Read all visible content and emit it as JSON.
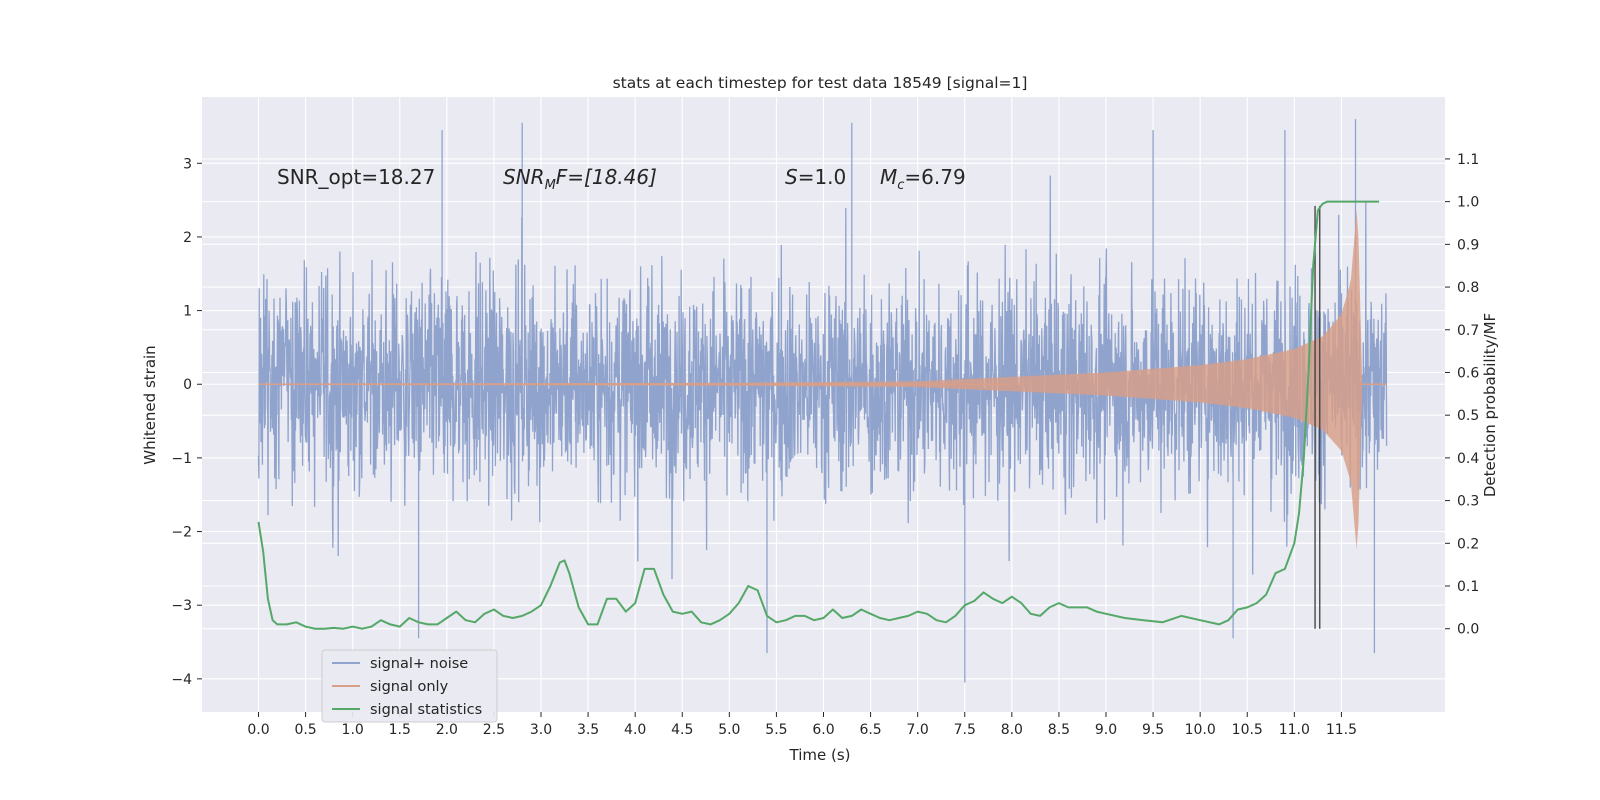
{
  "chart_data": {
    "type": "line",
    "title": "stats at each timestep for test data 18549 [signal=1]",
    "xlabel": "Time (s)",
    "ylabel": "Whitened strain",
    "ylabel_right": "Detection probability/MF",
    "xlim": [
      -0.6,
      12.6
    ],
    "ylim": [
      -4.45,
      3.9
    ],
    "ylim_right": [
      -0.195,
      1.245
    ],
    "x_ticks": [
      0.0,
      0.5,
      1.0,
      1.5,
      2.0,
      2.5,
      3.0,
      3.5,
      4.0,
      4.5,
      5.0,
      5.5,
      6.0,
      6.5,
      7.0,
      7.5,
      8.0,
      8.5,
      9.0,
      9.5,
      10.0,
      10.5,
      11.0,
      11.5
    ],
    "x_tick_labels": [
      "0.0",
      "0.5",
      "1.0",
      "1.5",
      "2.0",
      "2.5",
      "3.0",
      "3.5",
      "4.0",
      "4.5",
      "5.0",
      "5.5",
      "6.0",
      "6.5",
      "7.0",
      "7.5",
      "8.0",
      "8.5",
      "9.0",
      "9.5",
      "10.0",
      "10.5",
      "11.0",
      "11.5"
    ],
    "y_ticks": [
      -4,
      -3,
      -2,
      -1,
      0,
      1,
      2,
      3
    ],
    "y_tick_labels": [
      "−4",
      "−3",
      "−2",
      "−1",
      "0",
      "1",
      "2",
      "3"
    ],
    "y_right_ticks": [
      0.0,
      0.1,
      0.2,
      0.3,
      0.4,
      0.5,
      0.6,
      0.7,
      0.8,
      0.9,
      1.0,
      1.1
    ],
    "y_right_tick_labels": [
      "0.0",
      "0.1",
      "0.2",
      "0.3",
      "0.4",
      "0.5",
      "0.6",
      "0.7",
      "0.8",
      "0.9",
      "1.0",
      "1.1"
    ],
    "grid": true,
    "legend_position": "lower-left",
    "annotations": {
      "snr_opt": "SNR_opt=18.27",
      "snr_mf_base": "SNR",
      "snr_mf_sub": "M",
      "snr_mf_rest": "F=[18.46]",
      "s_var": "S",
      "s_rest": "=1.0",
      "mc_var": "M",
      "mc_sub": "c",
      "mc_rest": "=6.79"
    },
    "colors": {
      "background": "#eaeaf2",
      "grid": "#ffffff",
      "noise": "#8fa3cc",
      "signal": "#d99f88",
      "stats": "#55a868",
      "vline": "#3d3d3d"
    },
    "series": [
      {
        "name": "signal+ noise",
        "axis": "left",
        "x_range": [
          0.0,
          11.98
        ],
        "envelope_typical": [
          -1.5,
          1.55
        ],
        "peaks": [
          {
            "x": 1.95,
            "y": 3.45
          },
          {
            "x": 2.8,
            "y": 3.55
          },
          {
            "x": 6.3,
            "y": 3.55
          },
          {
            "x": 9.5,
            "y": 3.45
          },
          {
            "x": 10.9,
            "y": 3.45
          },
          {
            "x": 11.65,
            "y": 3.6
          },
          {
            "x": 7.5,
            "y": -4.05
          },
          {
            "x": 5.4,
            "y": -3.65
          },
          {
            "x": 11.85,
            "y": -3.65
          },
          {
            "x": 1.7,
            "y": -3.45
          },
          {
            "x": 10.35,
            "y": -3.45
          }
        ]
      },
      {
        "name": "signal only",
        "axis": "left",
        "chirp_end": 11.72,
        "envelope": [
          [
            0.0,
            0.01
          ],
          [
            5.0,
            0.02
          ],
          [
            7.0,
            0.04
          ],
          [
            8.0,
            0.1
          ],
          [
            9.0,
            0.16
          ],
          [
            10.0,
            0.26
          ],
          [
            10.5,
            0.34
          ],
          [
            11.0,
            0.48
          ],
          [
            11.3,
            0.65
          ],
          [
            11.5,
            0.95
          ],
          [
            11.6,
            1.4
          ],
          [
            11.67,
            2.5
          ],
          [
            11.72,
            0.1
          ]
        ]
      },
      {
        "name": "signal statistics",
        "axis": "right",
        "x": [
          0.0,
          0.05,
          0.1,
          0.15,
          0.2,
          0.3,
          0.4,
          0.5,
          0.6,
          0.7,
          0.8,
          0.9,
          1.0,
          1.1,
          1.2,
          1.3,
          1.4,
          1.5,
          1.6,
          1.7,
          1.8,
          1.9,
          2.0,
          2.1,
          2.2,
          2.3,
          2.4,
          2.5,
          2.6,
          2.7,
          2.8,
          2.9,
          3.0,
          3.1,
          3.2,
          3.25,
          3.3,
          3.4,
          3.5,
          3.6,
          3.7,
          3.8,
          3.9,
          4.0,
          4.1,
          4.2,
          4.3,
          4.4,
          4.5,
          4.6,
          4.7,
          4.8,
          4.9,
          5.0,
          5.1,
          5.2,
          5.3,
          5.4,
          5.5,
          5.6,
          5.7,
          5.8,
          5.9,
          6.0,
          6.1,
          6.2,
          6.3,
          6.4,
          6.5,
          6.6,
          6.7,
          6.8,
          6.9,
          7.0,
          7.1,
          7.2,
          7.3,
          7.4,
          7.5,
          7.6,
          7.7,
          7.8,
          7.9,
          8.0,
          8.1,
          8.2,
          8.3,
          8.4,
          8.5,
          8.6,
          8.7,
          8.8,
          8.9,
          9.0,
          9.2,
          9.4,
          9.6,
          9.8,
          10.0,
          10.2,
          10.3,
          10.4,
          10.5,
          10.6,
          10.7,
          10.8,
          10.9,
          11.0,
          11.05,
          11.1,
          11.15,
          11.2,
          11.25,
          11.3,
          11.35,
          11.4,
          11.5,
          11.7,
          11.9
        ],
        "values": [
          0.25,
          0.18,
          0.07,
          0.02,
          0.01,
          0.01,
          0.015,
          0.005,
          0.0,
          0.0,
          0.002,
          0.0,
          0.005,
          0.0,
          0.005,
          0.02,
          0.01,
          0.005,
          0.025,
          0.015,
          0.01,
          0.01,
          0.025,
          0.04,
          0.02,
          0.015,
          0.035,
          0.045,
          0.03,
          0.025,
          0.03,
          0.04,
          0.055,
          0.1,
          0.155,
          0.16,
          0.13,
          0.05,
          0.01,
          0.01,
          0.07,
          0.07,
          0.04,
          0.06,
          0.14,
          0.14,
          0.08,
          0.04,
          0.035,
          0.04,
          0.015,
          0.01,
          0.02,
          0.035,
          0.06,
          0.1,
          0.09,
          0.03,
          0.015,
          0.02,
          0.03,
          0.03,
          0.02,
          0.025,
          0.045,
          0.025,
          0.03,
          0.045,
          0.035,
          0.025,
          0.02,
          0.025,
          0.03,
          0.04,
          0.035,
          0.02,
          0.015,
          0.03,
          0.055,
          0.065,
          0.085,
          0.07,
          0.06,
          0.075,
          0.06,
          0.035,
          0.03,
          0.05,
          0.06,
          0.05,
          0.05,
          0.05,
          0.04,
          0.035,
          0.025,
          0.02,
          0.015,
          0.03,
          0.02,
          0.01,
          0.02,
          0.045,
          0.05,
          0.06,
          0.08,
          0.13,
          0.14,
          0.2,
          0.27,
          0.4,
          0.6,
          0.85,
          0.98,
          0.995,
          1.0,
          1.0,
          1.0,
          1.0,
          1.0
        ]
      }
    ],
    "vlines_right": [
      {
        "x": 11.22,
        "y0": 0.0,
        "y1": 0.99
      },
      {
        "x": 11.27,
        "y0": 0.0,
        "y1": 0.99
      }
    ]
  }
}
